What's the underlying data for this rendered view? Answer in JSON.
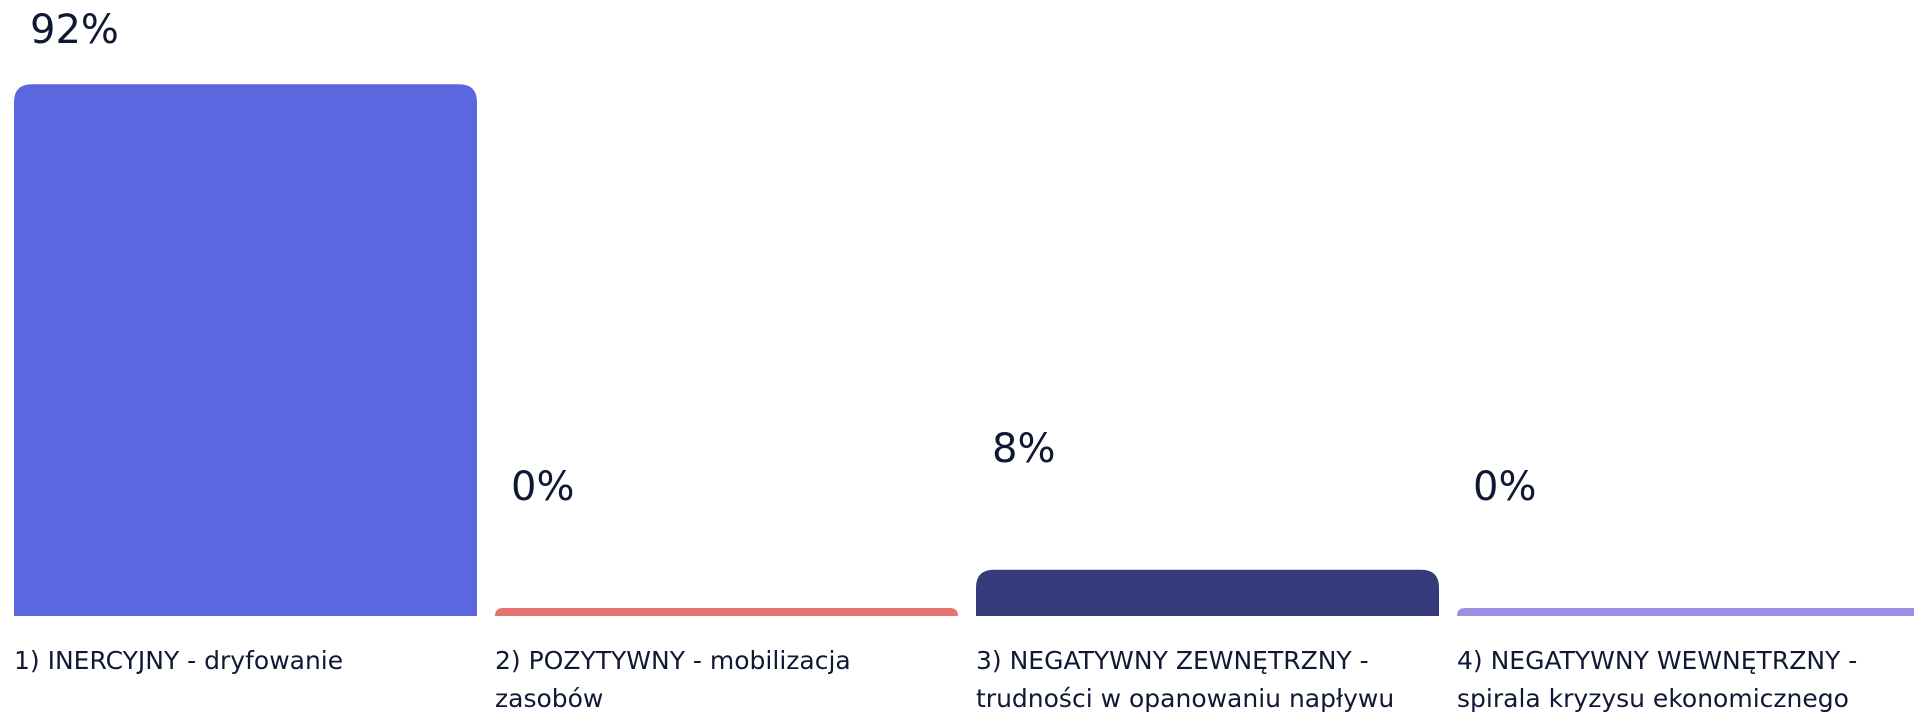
{
  "chart_data": {
    "type": "bar",
    "categories": [
      "1) INERCYJNY - dryfowanie",
      "2) POZYTYWNY - mobilizacja zasobów",
      "3) NEGATYWNY ZEWNĘTRZNY - trudności w opanowaniu napływu",
      "4) NEGATYWNY WEWNĘTRZNY - spirala kryzysu ekonomicznego"
    ],
    "values": [
      92,
      0,
      8,
      0
    ],
    "value_labels": [
      "92%",
      "0%",
      "8%",
      "0%"
    ],
    "colors": [
      "#5b67df",
      "#e5736f",
      "#343a7a",
      "#9990e3"
    ],
    "ylim": [
      0,
      100
    ]
  }
}
